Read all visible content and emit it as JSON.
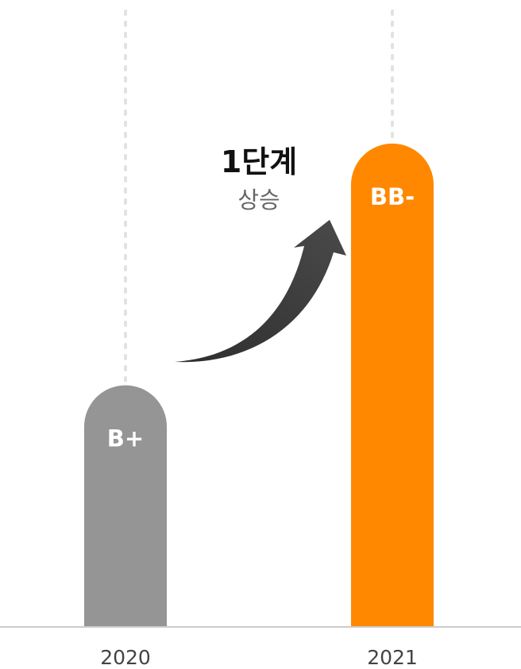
{
  "chart_data": {
    "type": "bar",
    "categories": [
      "2020",
      "2021"
    ],
    "values": [
      1,
      2
    ],
    "value_labels": [
      "B+",
      "BB-"
    ],
    "ylim": [
      0,
      2.2
    ],
    "grid": false,
    "annotation": {
      "main": "1단계",
      "sub": "상승"
    },
    "colors": {
      "bar_prev": "#959595",
      "bar_curr": "#ff8800",
      "arrow": "#3d3d3d",
      "guide": "#e2e2e2",
      "axis": "#cccccc"
    }
  }
}
